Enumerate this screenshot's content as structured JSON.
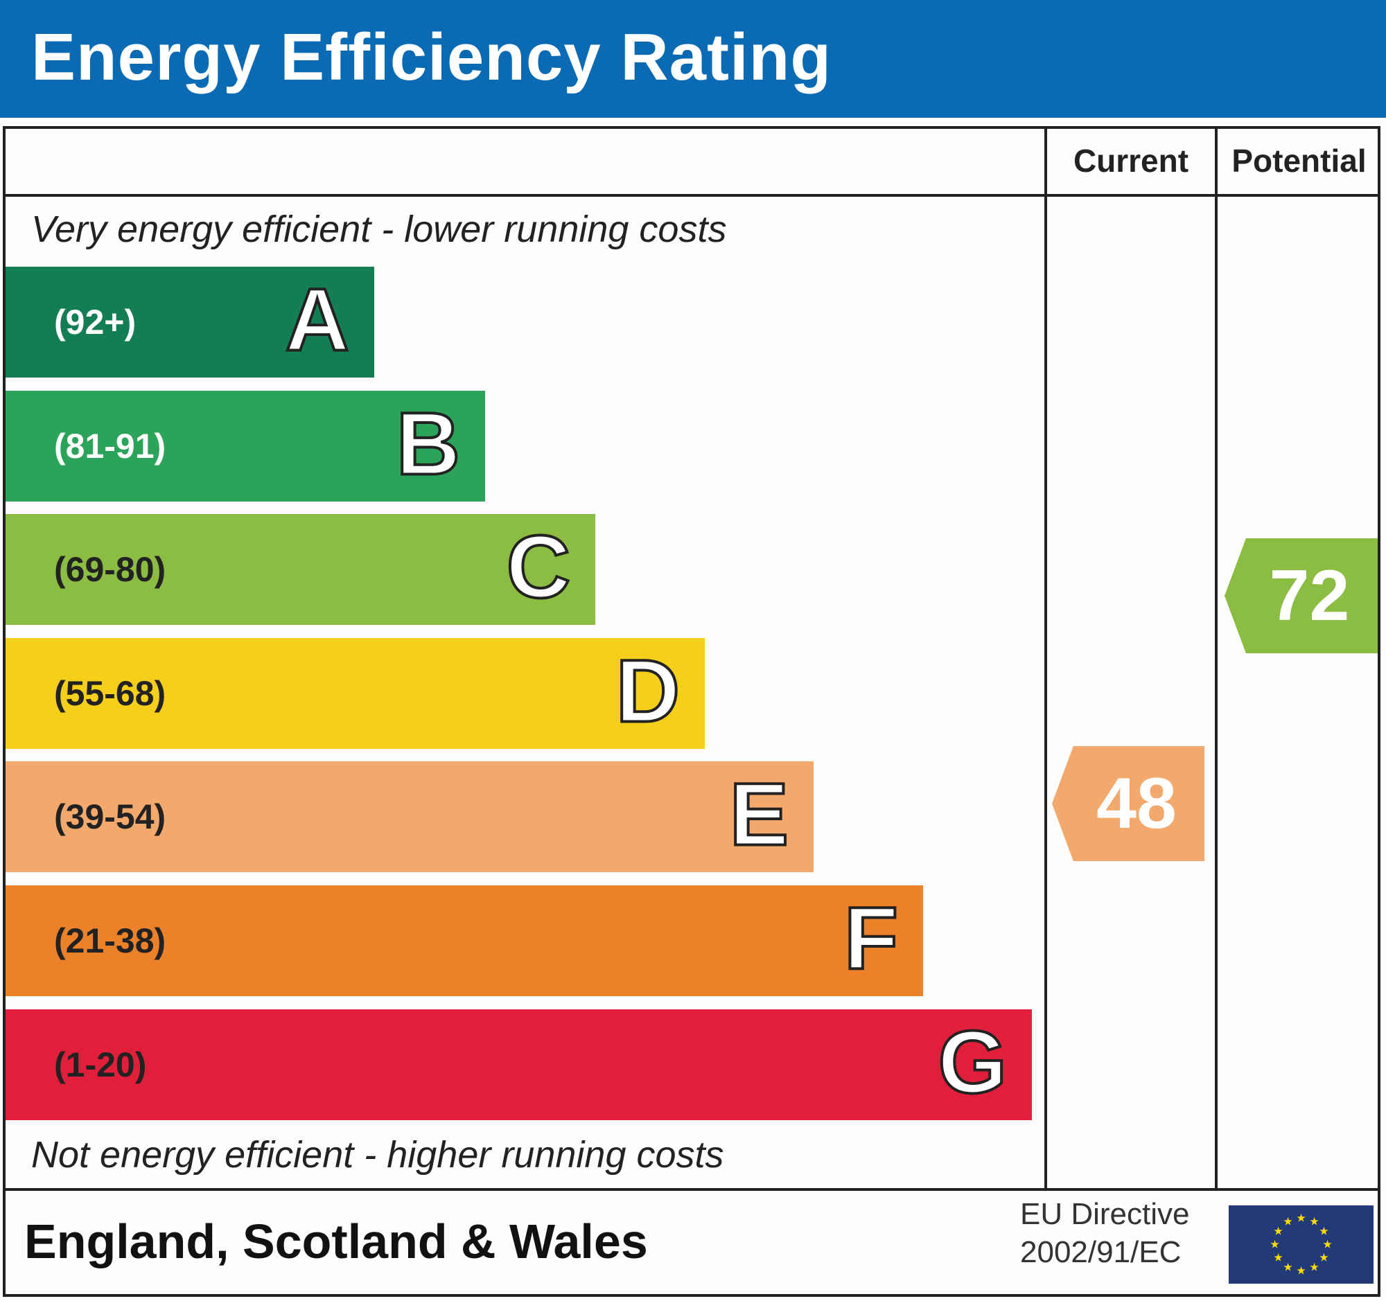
{
  "chart_data": {
    "type": "bar",
    "title": "Energy Efficiency Rating",
    "top_note": "Very energy efficient - lower running costs",
    "bottom_note": "Not energy efficient - higher running costs",
    "columns": [
      "Current",
      "Potential"
    ],
    "bands": [
      {
        "letter": "A",
        "range": "(92+)",
        "color": "#137d53",
        "text_color": "#ffffff"
      },
      {
        "letter": "B",
        "range": "(81-91)",
        "color": "#2ba358",
        "text_color": "#ffffff"
      },
      {
        "letter": "C",
        "range": "(69-80)",
        "color": "#8cbd43",
        "text_color": "#222222"
      },
      {
        "letter": "D",
        "range": "(55-68)",
        "color": "#f5cf1a",
        "text_color": "#222222"
      },
      {
        "letter": "E",
        "range": "(39-54)",
        "color": "#f3a96c",
        "text_color": "#222222"
      },
      {
        "letter": "F",
        "range": "(21-38)",
        "color": "#ec8129",
        "text_color": "#222222"
      },
      {
        "letter": "G",
        "range": "(1-20)",
        "color": "#e21f3b",
        "text_color": "#222222"
      }
    ],
    "current": {
      "value": "48",
      "band": "E",
      "color": "#f3a96c"
    },
    "potential": {
      "value": "72",
      "band": "C",
      "color": "#8cbd43"
    }
  },
  "footer": {
    "region": "England, Scotland & Wales",
    "directive_line1": "EU Directive",
    "directive_line2": "2002/91/EC",
    "flag_icon": "eu-flag-icon"
  },
  "colors": {
    "header_blue": "#0a6ab3",
    "flag_blue": "#223a78",
    "star_yellow": "#ffdd00"
  }
}
